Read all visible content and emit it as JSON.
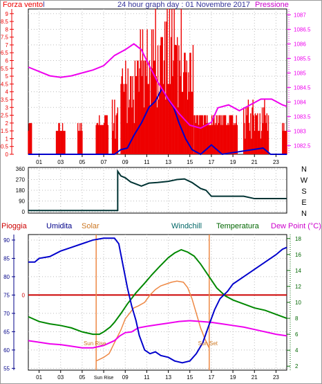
{
  "header": {
    "left_label": "Forza vento",
    "left_suffix": "l",
    "title": "24 hour graph day : 01 Novembre 2017",
    "right_label": "Pressione"
  },
  "colors": {
    "frame": "#000000",
    "wind_force": "#ee0000",
    "wind_speed": "#0000cc",
    "pressure": "#ee00ee",
    "direction": "#003333",
    "humidity": "#0000cc",
    "solar": "#ee8844",
    "windchill": "#008800",
    "temperature": "#008800",
    "dew_point": "#ee00ee",
    "rain": "#cc0000",
    "title_blue": "#333399",
    "umidita_label": "#000088",
    "windchill_label": "#006666",
    "temperatura_label": "#006600",
    "dewpoint_label": "#cc00cc",
    "solar_label": "#cc7722",
    "sun_line": "#ee8844"
  },
  "x_ticks": [
    "01",
    "03",
    "05",
    "07",
    "09",
    "11",
    "13",
    "15",
    "17",
    "19",
    "21",
    "23"
  ],
  "bottom_x_ticks": [
    "01",
    "03",
    "05",
    "Sun Rise",
    "09",
    "11",
    "13",
    "15",
    "17",
    "19",
    "21",
    "23"
  ],
  "chart_data": [
    {
      "type": "bar",
      "panel": "wind-and-pressure",
      "xlim": [
        0,
        24
      ],
      "left_axis": {
        "label": "Forza vento",
        "ticks": [
          "0",
          "0.5",
          "1",
          "1.5",
          "2",
          "2.5",
          "3",
          "3.5",
          "4",
          "4.5",
          "5",
          "5.5",
          "6",
          "6.5",
          "7",
          "7.5",
          "8",
          "8.5",
          "9"
        ],
        "ylim": [
          0,
          9.3
        ]
      },
      "right_axis": {
        "label": "Pressione",
        "ticks": [
          "1082.5",
          "1083",
          "1083.5",
          "1084",
          "1084.5",
          "1085",
          "1085.5",
          "1086",
          "1086.5",
          "1087"
        ],
        "ylim": [
          1082.2,
          1087.2
        ]
      },
      "wind_force_bursts": [
        {
          "start": 0.0,
          "end": 0.3,
          "max": 2
        },
        {
          "start": 2.6,
          "end": 3.4,
          "max": 2
        },
        {
          "start": 4.6,
          "end": 5.0,
          "max": 2
        },
        {
          "start": 6.3,
          "end": 7.4,
          "max": 2.5
        },
        {
          "start": 7.8,
          "end": 8.3,
          "max": 3.5
        },
        {
          "start": 8.6,
          "end": 10.2,
          "max": 6
        },
        {
          "start": 10.2,
          "end": 11.6,
          "max": 8
        },
        {
          "start": 11.6,
          "end": 14.2,
          "max": 9.3
        },
        {
          "start": 14.2,
          "end": 15.3,
          "max": 7
        },
        {
          "start": 15.4,
          "end": 16.4,
          "max": 2.5
        },
        {
          "start": 16.4,
          "end": 19.4,
          "max": 2.5
        },
        {
          "start": 20.0,
          "end": 22.3,
          "max": 3.5
        },
        {
          "start": 23.6,
          "end": 24.0,
          "max": 2
        }
      ],
      "wind_speed_points": [
        [
          0,
          0
        ],
        [
          8,
          0
        ],
        [
          8.6,
          0.3
        ],
        [
          9.2,
          0.4
        ],
        [
          9.8,
          1.2
        ],
        [
          10.5,
          2
        ],
        [
          11.2,
          3
        ],
        [
          11.8,
          3.4
        ],
        [
          12.4,
          4.2
        ],
        [
          13.0,
          3.5
        ],
        [
          13.5,
          3.0
        ],
        [
          14.0,
          2.0
        ],
        [
          14.6,
          1.0
        ],
        [
          15.2,
          0.3
        ],
        [
          16,
          0
        ],
        [
          17,
          0.6
        ],
        [
          18,
          0
        ],
        [
          21.8,
          0.4
        ],
        [
          22.5,
          0
        ],
        [
          24,
          0
        ]
      ],
      "pressure_points": [
        [
          0,
          1085.2
        ],
        [
          1,
          1085.05
        ],
        [
          2,
          1084.9
        ],
        [
          3,
          1084.85
        ],
        [
          4,
          1084.9
        ],
        [
          5,
          1085.0
        ],
        [
          6,
          1085.1
        ],
        [
          7,
          1085.25
        ],
        [
          8,
          1085.6
        ],
        [
          9,
          1085.8
        ],
        [
          9.8,
          1086.0
        ],
        [
          10.5,
          1085.8
        ],
        [
          11.3,
          1085.2
        ],
        [
          12,
          1084.7
        ],
        [
          13,
          1084.1
        ],
        [
          14,
          1083.6
        ],
        [
          15,
          1083.2
        ],
        [
          16,
          1083.1
        ],
        [
          17,
          1083.3
        ],
        [
          17.6,
          1083.8
        ],
        [
          18.6,
          1083.9
        ],
        [
          19.6,
          1083.7
        ],
        [
          20.6,
          1083.9
        ],
        [
          21.6,
          1084.1
        ],
        [
          22.6,
          1084.1
        ],
        [
          23.6,
          1083.9
        ],
        [
          24,
          1083.85
        ]
      ]
    },
    {
      "type": "line",
      "panel": "wind-direction",
      "xlim": [
        0,
        24
      ],
      "y_ticks": [
        "0",
        "90",
        "180",
        "270",
        "360"
      ],
      "right_compass": [
        "N",
        "W",
        "S",
        "E",
        "N"
      ],
      "ylim": [
        0,
        360
      ],
      "direction_points": [
        [
          0,
          10
        ],
        [
          8.3,
          10
        ],
        [
          8.3,
          340
        ],
        [
          8.6,
          300
        ],
        [
          9.0,
          285
        ],
        [
          9.5,
          250
        ],
        [
          10.5,
          215
        ],
        [
          11.2,
          240
        ],
        [
          12.0,
          245
        ],
        [
          13.0,
          255
        ],
        [
          13.8,
          270
        ],
        [
          14.5,
          275
        ],
        [
          15.2,
          245
        ],
        [
          16.0,
          195
        ],
        [
          16.5,
          180
        ],
        [
          17.0,
          130
        ],
        [
          20.0,
          130
        ],
        [
          21.0,
          110
        ],
        [
          24,
          110
        ]
      ]
    },
    {
      "type": "line",
      "panel": "humidity-temperature",
      "xlim": [
        0,
        24
      ],
      "legend": [
        "Pioggia",
        "Umidita",
        "Solar",
        "Windchill",
        "Temperatura",
        "Dew Point (°C)"
      ],
      "left_axis": {
        "ticks": [
          "55",
          "60",
          "65",
          "70",
          "75",
          "80",
          "85",
          "90"
        ],
        "ylim": [
          54.5,
          91.5
        ],
        "zero_label": "0"
      },
      "right_axis": {
        "ticks": [
          "2",
          "4",
          "6",
          "8",
          "10",
          "12",
          "14",
          "16",
          "18"
        ],
        "ylim": [
          1.5,
          18.5
        ]
      },
      "annotations": [
        {
          "text": "Sun Rise",
          "x": 6.3
        },
        {
          "text": "Sun Set",
          "x": 16.8
        }
      ],
      "rain_zero_value": 75,
      "humidity_points": [
        [
          0,
          84
        ],
        [
          0.6,
          84
        ],
        [
          1,
          85
        ],
        [
          2,
          85.5
        ],
        [
          3,
          87
        ],
        [
          4,
          88
        ],
        [
          5,
          89
        ],
        [
          6,
          90
        ],
        [
          7,
          90.5
        ],
        [
          8,
          90.5
        ],
        [
          8.4,
          89
        ],
        [
          8.8,
          83
        ],
        [
          9.2,
          77
        ],
        [
          9.6,
          72
        ],
        [
          10,
          68
        ],
        [
          10.3,
          64
        ],
        [
          10.8,
          60
        ],
        [
          11.3,
          59
        ],
        [
          11.8,
          59.5
        ],
        [
          12.3,
          58.5
        ],
        [
          13,
          58
        ],
        [
          13.6,
          57
        ],
        [
          14.3,
          56.5
        ],
        [
          15,
          57
        ],
        [
          15.6,
          59
        ],
        [
          16.2,
          62
        ],
        [
          16.8,
          67
        ],
        [
          17.3,
          71
        ],
        [
          17.8,
          74
        ],
        [
          18.5,
          76
        ],
        [
          19,
          78
        ],
        [
          20,
          80
        ],
        [
          21,
          82
        ],
        [
          22,
          84
        ],
        [
          23,
          86
        ],
        [
          23.6,
          87.5
        ],
        [
          24,
          88
        ]
      ],
      "solar_points": [
        [
          6.3,
          57
        ],
        [
          7.0,
          58
        ],
        [
          7.5,
          59
        ],
        [
          8.0,
          62
        ],
        [
          8.6,
          65.5
        ],
        [
          9.0,
          68.5
        ],
        [
          9.4,
          70
        ],
        [
          9.8,
          71.5
        ],
        [
          10.2,
          72
        ],
        [
          10.8,
          73
        ],
        [
          11.3,
          75
        ],
        [
          11.8,
          76.5
        ],
        [
          12.3,
          77.5
        ],
        [
          12.8,
          78
        ],
        [
          13.3,
          78.5
        ],
        [
          13.8,
          78.8
        ],
        [
          14.4,
          78.5
        ],
        [
          14.8,
          77
        ],
        [
          15.2,
          74
        ],
        [
          15.6,
          70
        ],
        [
          16.0,
          66
        ],
        [
          16.4,
          63
        ],
        [
          16.8,
          60.5
        ]
      ],
      "temperature_points": [
        [
          0,
          8.2
        ],
        [
          1,
          7.6
        ],
        [
          2,
          7.3
        ],
        [
          3,
          7.1
        ],
        [
          4,
          6.8
        ],
        [
          5,
          6.3
        ],
        [
          6,
          6.0
        ],
        [
          6.6,
          6.0
        ],
        [
          7,
          6.3
        ],
        [
          7.6,
          6.9
        ],
        [
          8,
          7.5
        ],
        [
          8.6,
          8.6
        ],
        [
          9.2,
          9.8
        ],
        [
          10,
          11.2
        ],
        [
          10.8,
          12.4
        ],
        [
          11.5,
          13.5
        ],
        [
          12.2,
          14.5
        ],
        [
          13,
          15.6
        ],
        [
          13.6,
          16.2
        ],
        [
          14.2,
          16.6
        ],
        [
          14.8,
          16.3
        ],
        [
          15.4,
          15.8
        ],
        [
          16,
          14.8
        ],
        [
          16.8,
          13.2
        ],
        [
          17.5,
          11.8
        ],
        [
          18.3,
          10.8
        ],
        [
          19,
          10.3
        ],
        [
          20,
          9.8
        ],
        [
          21,
          9.3
        ],
        [
          22,
          9.0
        ],
        [
          23,
          8.5
        ],
        [
          24,
          8.0
        ]
      ],
      "dewpoint_points": [
        [
          0,
          5.2
        ],
        [
          1,
          5.0
        ],
        [
          2,
          4.8
        ],
        [
          3,
          4.7
        ],
        [
          4,
          4.5
        ],
        [
          5,
          4.3
        ],
        [
          6,
          4.3
        ],
        [
          7,
          4.6
        ],
        [
          8,
          5.2
        ],
        [
          8.5,
          5.8
        ],
        [
          9,
          6.2
        ],
        [
          9.6,
          6.3
        ],
        [
          10.2,
          6.8
        ],
        [
          11.0,
          7.0
        ],
        [
          12.0,
          7.2
        ],
        [
          13.0,
          7.4
        ],
        [
          14.0,
          7.6
        ],
        [
          15.0,
          7.7
        ],
        [
          16.0,
          7.6
        ],
        [
          17.0,
          7.5
        ],
        [
          18.0,
          7.3
        ],
        [
          19.0,
          7.1
        ],
        [
          20.0,
          6.9
        ],
        [
          21.0,
          6.6
        ],
        [
          22.0,
          6.3
        ],
        [
          23.0,
          6.0
        ],
        [
          24,
          5.8
        ]
      ]
    }
  ]
}
